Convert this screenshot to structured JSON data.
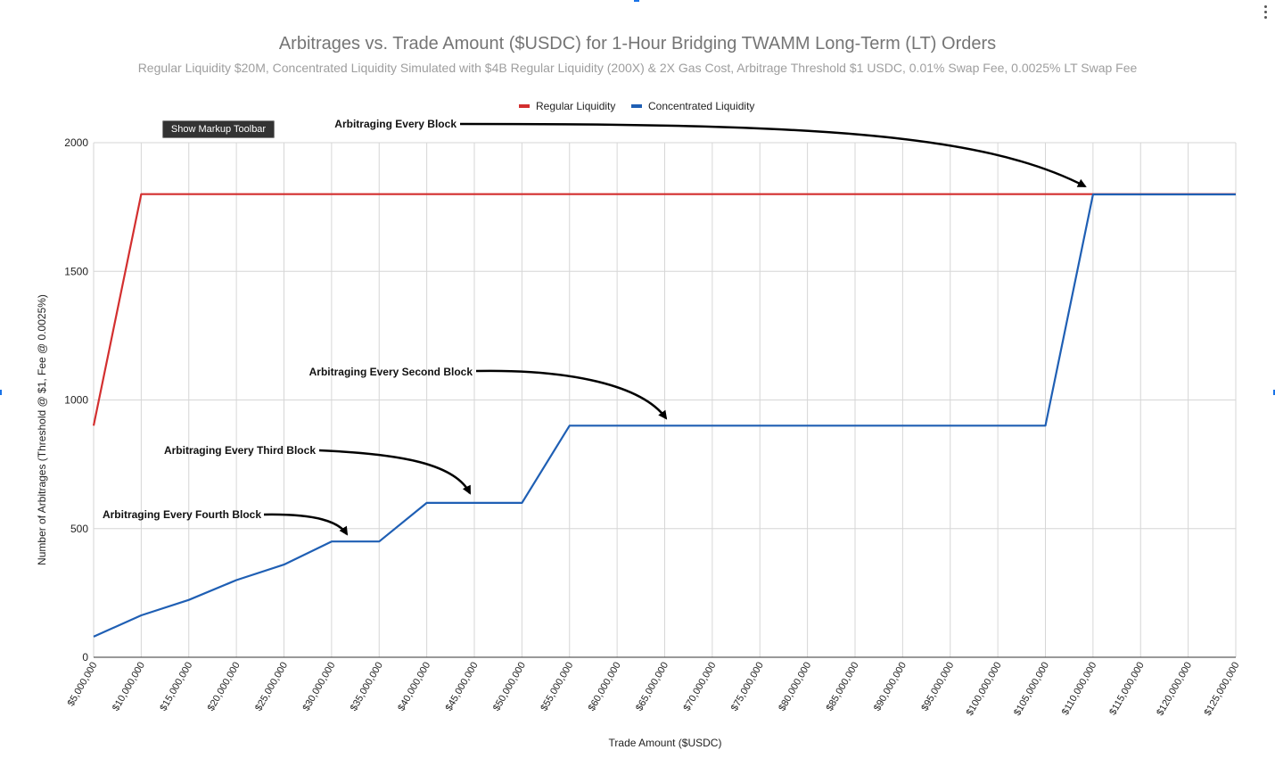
{
  "chart_data": {
    "type": "line",
    "title": "Arbitrages vs. Trade Amount ($USDC) for 1-Hour Bridging TWAMM Long-Term (LT) Orders",
    "subtitle": "Regular Liquidity $20M, Concentrated Liquidity Simulated with $4B Regular Liquidity (200X) & 2X Gas Cost, Arbitrage Threshold $1 USDC, 0.01% Swap Fee, 0.0025% LT Swap Fee",
    "xlabel": "Trade Amount ($USDC)",
    "ylabel": "Number of Arbitrages (Threshold @ $1, Fee @ 0.0025%)",
    "ylim": [
      0,
      2000
    ],
    "yticks": [
      "0",
      "500",
      "1000",
      "1500",
      "2000"
    ],
    "categories": [
      "$5,000,000",
      "$10,000,000",
      "$15,000,000",
      "$20,000,000",
      "$25,000,000",
      "$30,000,000",
      "$35,000,000",
      "$40,000,000",
      "$45,000,000",
      "$50,000,000",
      "$55,000,000",
      "$60,000,000",
      "$65,000,000",
      "$70,000,000",
      "$75,000,000",
      "$80,000,000",
      "$85,000,000",
      "$90,000,000",
      "$95,000,000",
      "$100,000,000",
      "$105,000,000",
      "$110,000,000",
      "$115,000,000",
      "$120,000,000",
      "$125,000,000"
    ],
    "series": [
      {
        "name": "Regular Liquidity",
        "color": "#d32f2f",
        "values": [
          900,
          1800,
          1800,
          1800,
          1800,
          1800,
          1800,
          1800,
          1800,
          1800,
          1800,
          1800,
          1800,
          1800,
          1800,
          1800,
          1800,
          1800,
          1800,
          1800,
          1800,
          1800,
          1800,
          1800,
          1800
        ]
      },
      {
        "name": "Concentrated Liquidity",
        "color": "#1f5fb4",
        "values": [
          80,
          163,
          223,
          300,
          360,
          450,
          450,
          600,
          600,
          600,
          900,
          900,
          900,
          900,
          900,
          900,
          900,
          900,
          900,
          900,
          900,
          1799,
          1799,
          1799,
          1799
        ]
      }
    ],
    "legend_position": "top",
    "grid": true,
    "annotations": [
      {
        "text": "Arbitraging Every Block",
        "points_to_x": "$110,000,000",
        "points_to_y": 1800
      },
      {
        "text": "Arbitraging Every Second Block",
        "points_to_x": "$65,000,000",
        "points_to_y": 900
      },
      {
        "text": "Arbitraging Every Third Block",
        "points_to_x": "$45,000,000",
        "points_to_y": 600
      },
      {
        "text": "Arbitraging Every Fourth Block",
        "points_to_x": "$32,500,000",
        "points_to_y": 450
      }
    ]
  },
  "toolbar": {
    "markup_button_label": "Show Markup Toolbar"
  },
  "menu": {
    "icon": "more-vert-icon"
  }
}
